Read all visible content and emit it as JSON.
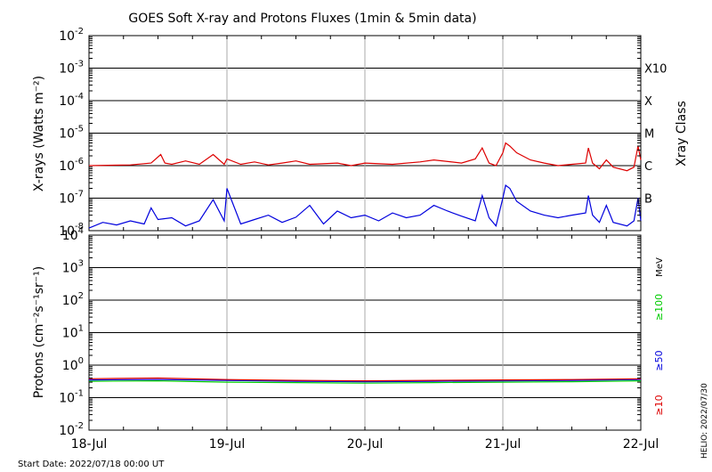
{
  "chart_data": [
    {
      "type": "line",
      "title": "GOES Soft X-ray and Protons Fluxes   (1min & 5min data)",
      "ylabel": "X-rays (Watts m⁻²)",
      "y2label": "Xray Class",
      "yscale": "log",
      "ylim": [
        1e-08,
        0.01
      ],
      "ytick_exponents": [
        -8,
        -7,
        -6,
        -5,
        -4,
        -3,
        -2
      ],
      "class_labels": [
        {
          "label": "X10",
          "value": 0.001
        },
        {
          "label": "X",
          "value": 0.0001
        },
        {
          "label": "M",
          "value": 1e-05
        },
        {
          "label": "C",
          "value": 1e-06
        },
        {
          "label": "B",
          "value": 1e-07
        }
      ],
      "x_categories": [
        "18-Jul",
        "19-Jul",
        "20-Jul",
        "21-Jul",
        "22-Jul"
      ],
      "series": [
        {
          "color": "#dd0000",
          "x_days": [
            0,
            0.3,
            0.45,
            0.52,
            0.55,
            0.6,
            0.7,
            0.8,
            0.9,
            0.98,
            1.0,
            1.1,
            1.2,
            1.3,
            1.4,
            1.5,
            1.6,
            1.8,
            1.9,
            2.0,
            2.2,
            2.4,
            2.5,
            2.7,
            2.8,
            2.85,
            2.9,
            2.95,
            3.0,
            3.02,
            3.05,
            3.1,
            3.2,
            3.3,
            3.4,
            3.5,
            3.6,
            3.62,
            3.65,
            3.7,
            3.75,
            3.8,
            3.9,
            3.95,
            3.98,
            4.0
          ],
          "values": [
            1e-06,
            1.05e-06,
            1.2e-06,
            2.2e-06,
            1.2e-06,
            1.1e-06,
            1.4e-06,
            1.1e-06,
            2.2e-06,
            1.1e-06,
            1.6e-06,
            1.1e-06,
            1.3e-06,
            1.05e-06,
            1.2e-06,
            1.4e-06,
            1.1e-06,
            1.2e-06,
            1e-06,
            1.2e-06,
            1.1e-06,
            1.3e-06,
            1.5e-06,
            1.2e-06,
            1.6e-06,
            3.5e-06,
            1.2e-06,
            1e-06,
            2.5e-06,
            5e-06,
            4e-06,
            2.5e-06,
            1.5e-06,
            1.2e-06,
            1e-06,
            1.1e-06,
            1.2e-06,
            3.5e-06,
            1.2e-06,
            8e-07,
            1.5e-06,
            9e-07,
            7e-07,
            9e-07,
            4e-06,
            1.5e-06
          ]
        },
        {
          "color": "#0000dd",
          "x_days": [
            0,
            0.1,
            0.2,
            0.3,
            0.4,
            0.45,
            0.5,
            0.6,
            0.7,
            0.8,
            0.9,
            0.98,
            1.0,
            1.1,
            1.2,
            1.3,
            1.4,
            1.5,
            1.6,
            1.7,
            1.8,
            1.9,
            2.0,
            2.1,
            2.2,
            2.3,
            2.4,
            2.5,
            2.6,
            2.7,
            2.8,
            2.85,
            2.9,
            2.95,
            3.0,
            3.02,
            3.05,
            3.1,
            3.2,
            3.3,
            3.4,
            3.5,
            3.6,
            3.62,
            3.65,
            3.7,
            3.75,
            3.8,
            3.9,
            3.95,
            3.98,
            4.0
          ],
          "values": [
            1.2e-08,
            1.8e-08,
            1.5e-08,
            2e-08,
            1.6e-08,
            5e-08,
            2.2e-08,
            2.5e-08,
            1.4e-08,
            2e-08,
            9e-08,
            2e-08,
            2e-07,
            1.6e-08,
            2.2e-08,
            3e-08,
            1.8e-08,
            2.6e-08,
            6e-08,
            1.6e-08,
            4e-08,
            2.5e-08,
            3e-08,
            2e-08,
            3.5e-08,
            2.5e-08,
            3e-08,
            6e-08,
            4e-08,
            2.8e-08,
            2e-08,
            1.2e-07,
            2.5e-08,
            1.4e-08,
            1e-07,
            2.5e-07,
            2e-07,
            8e-08,
            4e-08,
            3e-08,
            2.5e-08,
            3e-08,
            3.5e-08,
            1.2e-07,
            3e-08,
            1.8e-08,
            6e-08,
            1.8e-08,
            1.4e-08,
            2e-08,
            1e-07,
            2e-08
          ]
        }
      ],
      "grid": true
    },
    {
      "type": "line",
      "ylabel": "Protons (cm⁻²s⁻¹sr⁻¹)",
      "yscale": "log",
      "ylim": [
        0.01,
        10000
      ],
      "ytick_exponents": [
        -2,
        -1,
        0,
        1,
        2,
        3,
        4
      ],
      "dashed_threshold": 10,
      "unit_label": "MeV",
      "x_categories": [
        "18-Jul",
        "19-Jul",
        "20-Jul",
        "21-Jul",
        "22-Jul"
      ],
      "series": [
        {
          "name": "≥100",
          "color": "#00cc00",
          "x_days": [
            0,
            0.5,
            1,
            1.5,
            2,
            2.5,
            3,
            3.5,
            4
          ],
          "values": [
            0.32,
            0.33,
            0.3,
            0.29,
            0.28,
            0.29,
            0.3,
            0.31,
            0.33
          ]
        },
        {
          "name": "≥50",
          "color": "#0000dd",
          "x_days": [
            0,
            0.5,
            1,
            1.5,
            2,
            2.5,
            3,
            3.5,
            4
          ],
          "values": [
            0.35,
            0.36,
            0.34,
            0.32,
            0.31,
            0.32,
            0.33,
            0.34,
            0.36
          ]
        },
        {
          "name": "≥10",
          "color": "#dd0000",
          "x_days": [
            0,
            0.5,
            1,
            1.5,
            2,
            2.5,
            3,
            3.5,
            4
          ],
          "values": [
            0.38,
            0.4,
            0.36,
            0.34,
            0.33,
            0.34,
            0.35,
            0.36,
            0.38
          ]
        }
      ],
      "grid": true
    }
  ],
  "footer": {
    "start_date": "Start Date: 2022/07/18 00:00 UT",
    "helio": "HELIO: 2022/07/30"
  }
}
